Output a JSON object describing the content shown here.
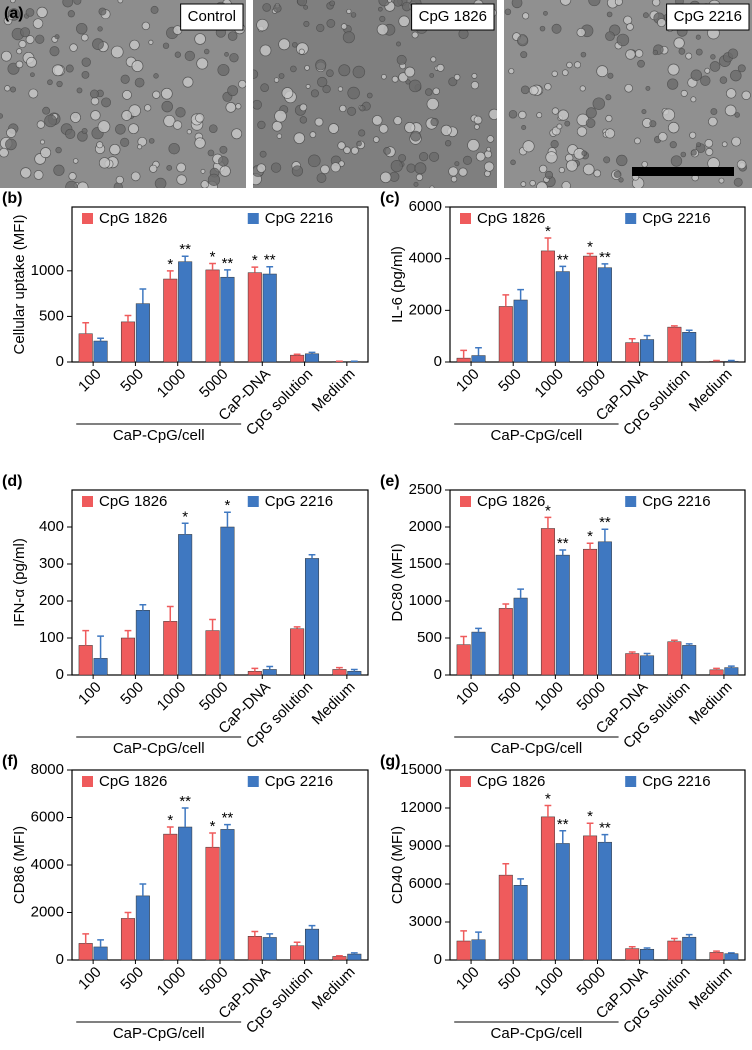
{
  "panel_a": {
    "label": "(a)",
    "images": [
      {
        "label": "Control"
      },
      {
        "label": "CpG 1826"
      },
      {
        "label": "CpG 2216"
      }
    ]
  },
  "chart_data": [
    {
      "type": "bar",
      "panel_label": "(b)",
      "ylabel": "Cellular uptake (MFI)",
      "group_label": "CaP-CpG/cell",
      "categories": [
        "100",
        "500",
        "1000",
        "5000",
        "CaP-DNA",
        "CpG solution",
        "Medium"
      ],
      "ylim": [
        0,
        1700
      ],
      "yticks": [
        0,
        500,
        1000
      ],
      "series": [
        {
          "name": "CpG 1826",
          "color": "#ef5b5c",
          "values": [
            310,
            440,
            910,
            1010,
            980,
            75,
            5
          ],
          "errors": [
            120,
            70,
            90,
            70,
            60,
            10,
            3
          ],
          "annotations": [
            null,
            null,
            "*",
            "*",
            "*",
            null,
            null
          ]
        },
        {
          "name": "CpG 2216",
          "color": "#3f78c1",
          "values": [
            230,
            640,
            1100,
            930,
            965,
            90,
            5
          ],
          "errors": [
            30,
            160,
            60,
            80,
            80,
            15,
            3
          ],
          "annotations": [
            null,
            null,
            "**",
            "**",
            "**",
            null,
            null
          ]
        }
      ]
    },
    {
      "type": "bar",
      "panel_label": "(c)",
      "ylabel": "IL-6 (pg/ml)",
      "group_label": "CaP-CpG/cell",
      "categories": [
        "100",
        "500",
        "1000",
        "5000",
        "CaP-DNA",
        "CpG solution",
        "Medium"
      ],
      "ylim": [
        0,
        6000
      ],
      "yticks": [
        0,
        2000,
        4000,
        6000
      ],
      "series": [
        {
          "name": "CpG 1826",
          "color": "#ef5b5c",
          "values": [
            150,
            2150,
            4300,
            4100,
            750,
            1350,
            30
          ],
          "errors": [
            300,
            450,
            500,
            100,
            150,
            50,
            30
          ],
          "annotations": [
            null,
            null,
            "*",
            "*",
            null,
            null,
            null
          ]
        },
        {
          "name": "CpG 2216",
          "color": "#3f78c1",
          "values": [
            250,
            2400,
            3500,
            3650,
            870,
            1150,
            30
          ],
          "errors": [
            300,
            400,
            200,
            150,
            150,
            80,
            30
          ],
          "annotations": [
            null,
            null,
            "**",
            "**",
            null,
            null,
            null
          ]
        }
      ]
    },
    {
      "type": "bar",
      "panel_label": "(d)",
      "ylabel": "IFN-α (pg/ml)",
      "group_label": "CaP-CpG/cell",
      "categories": [
        "100",
        "500",
        "1000",
        "5000",
        "CaP-DNA",
        "CpG solution",
        "Medium"
      ],
      "ylim": [
        0,
        500
      ],
      "yticks": [
        0,
        100,
        200,
        300,
        400
      ],
      "series": [
        {
          "name": "CpG 1826",
          "color": "#ef5b5c",
          "values": [
            80,
            100,
            145,
            120,
            10,
            125,
            15
          ],
          "errors": [
            40,
            20,
            40,
            30,
            8,
            5,
            5
          ],
          "annotations": [
            null,
            null,
            null,
            null,
            null,
            null,
            null
          ]
        },
        {
          "name": "CpG 2216",
          "color": "#3f78c1",
          "values": [
            45,
            175,
            380,
            400,
            15,
            315,
            10
          ],
          "errors": [
            60,
            15,
            30,
            40,
            8,
            10,
            5
          ],
          "annotations": [
            null,
            null,
            "*",
            "*",
            null,
            null,
            null
          ]
        }
      ]
    },
    {
      "type": "bar",
      "panel_label": "(e)",
      "ylabel": "DC80 (MFI)",
      "group_label": "CaP-CpG/cell",
      "categories": [
        "100",
        "500",
        "1000",
        "5000",
        "CaP-DNA",
        "CpG solution",
        "Medium"
      ],
      "ylim": [
        0,
        2500
      ],
      "yticks": [
        0,
        500,
        1000,
        1500,
        2000,
        2500
      ],
      "series": [
        {
          "name": "CpG 1826",
          "color": "#ef5b5c",
          "values": [
            410,
            900,
            1980,
            1700,
            290,
            450,
            70
          ],
          "errors": [
            110,
            60,
            150,
            80,
            20,
            20,
            20
          ],
          "annotations": [
            null,
            null,
            "*",
            "*",
            null,
            null,
            null
          ]
        },
        {
          "name": "CpG 2216",
          "color": "#3f78c1",
          "values": [
            580,
            1040,
            1620,
            1800,
            260,
            400,
            100
          ],
          "errors": [
            50,
            120,
            70,
            170,
            30,
            20,
            20
          ],
          "annotations": [
            null,
            null,
            "**",
            "**",
            null,
            null,
            null
          ]
        }
      ]
    },
    {
      "type": "bar",
      "panel_label": "(f)",
      "ylabel": "CD86 (MFI)",
      "group_label": "CaP-CpG/cell",
      "categories": [
        "100",
        "500",
        "1000",
        "5000",
        "CaP-DNA",
        "CpG solution",
        "Medium"
      ],
      "ylim": [
        0,
        8000
      ],
      "yticks": [
        0,
        2000,
        4000,
        6000,
        8000
      ],
      "series": [
        {
          "name": "CpG 1826",
          "color": "#ef5b5c",
          "values": [
            700,
            1750,
            5300,
            4750,
            1000,
            600,
            150
          ],
          "errors": [
            400,
            250,
            300,
            600,
            200,
            150,
            30
          ],
          "annotations": [
            null,
            null,
            "*",
            "*",
            null,
            null,
            null
          ]
        },
        {
          "name": "CpG 2216",
          "color": "#3f78c1",
          "values": [
            550,
            2700,
            5600,
            5500,
            950,
            1300,
            250
          ],
          "errors": [
            300,
            500,
            800,
            200,
            150,
            150,
            50
          ],
          "annotations": [
            null,
            null,
            "**",
            "**",
            null,
            null,
            null
          ]
        }
      ]
    },
    {
      "type": "bar",
      "panel_label": "(g)",
      "ylabel": "CD40 (MFI)",
      "group_label": "CaP-CpG/cell",
      "categories": [
        "100",
        "500",
        "1000",
        "5000",
        "CaP-DNA",
        "CpG solution",
        "Medium"
      ],
      "ylim": [
        0,
        15000
      ],
      "yticks": [
        0,
        3000,
        6000,
        9000,
        12000,
        15000
      ],
      "series": [
        {
          "name": "CpG 1826",
          "color": "#ef5b5c",
          "values": [
            1500,
            6700,
            11300,
            9800,
            900,
            1500,
            600
          ],
          "errors": [
            800,
            900,
            900,
            1000,
            150,
            200,
            100
          ],
          "annotations": [
            null,
            null,
            "*",
            "*",
            null,
            null,
            null
          ]
        },
        {
          "name": "CpG 2216",
          "color": "#3f78c1",
          "values": [
            1600,
            5900,
            9200,
            9300,
            850,
            1800,
            500
          ],
          "errors": [
            600,
            500,
            1000,
            600,
            100,
            200,
            60
          ],
          "annotations": [
            null,
            null,
            "**",
            "**",
            null,
            null,
            null
          ]
        }
      ]
    }
  ]
}
